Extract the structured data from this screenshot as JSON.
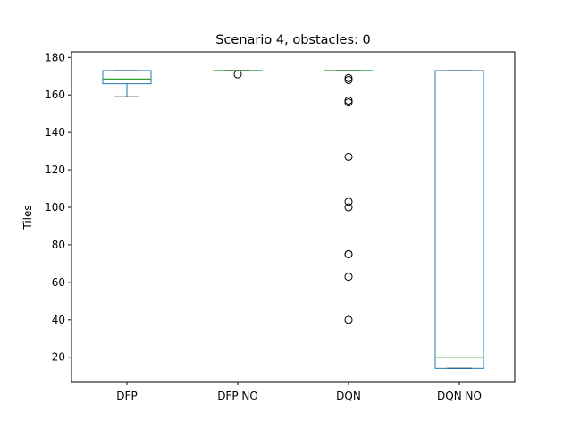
{
  "chart_data": {
    "type": "box",
    "title": "Scenario 4, obstacles: 0",
    "xlabel": "",
    "ylabel": "Tiles",
    "ylim": [
      7,
      183
    ],
    "yticks": [
      20,
      40,
      60,
      80,
      100,
      120,
      140,
      160,
      180
    ],
    "categories": [
      "DFP",
      "DFP NO",
      "DQN",
      "DQN NO"
    ],
    "boxes": [
      {
        "name": "DFP",
        "whisker_low": 159,
        "q1": 166,
        "median": 168.5,
        "q3": 173,
        "whisker_high": 173,
        "outliers": []
      },
      {
        "name": "DFP NO",
        "whisker_low": 173,
        "q1": 173,
        "median": 173,
        "q3": 173,
        "whisker_high": 173,
        "outliers": [
          171
        ]
      },
      {
        "name": "DQN",
        "whisker_low": 173,
        "q1": 173,
        "median": 173,
        "q3": 173,
        "whisker_high": 173,
        "outliers": [
          169,
          168,
          157,
          156,
          127,
          103,
          100,
          75,
          75,
          63,
          40
        ]
      },
      {
        "name": "DQN NO",
        "whisker_low": 14,
        "q1": 14,
        "median": 20,
        "q3": 173,
        "whisker_high": 173,
        "outliers": []
      }
    ],
    "colors": {
      "box": "#1f77b4",
      "median": "#2ca02c",
      "whisker": "#000000",
      "axes": "#000000"
    },
    "grid": false,
    "legend": "none"
  }
}
